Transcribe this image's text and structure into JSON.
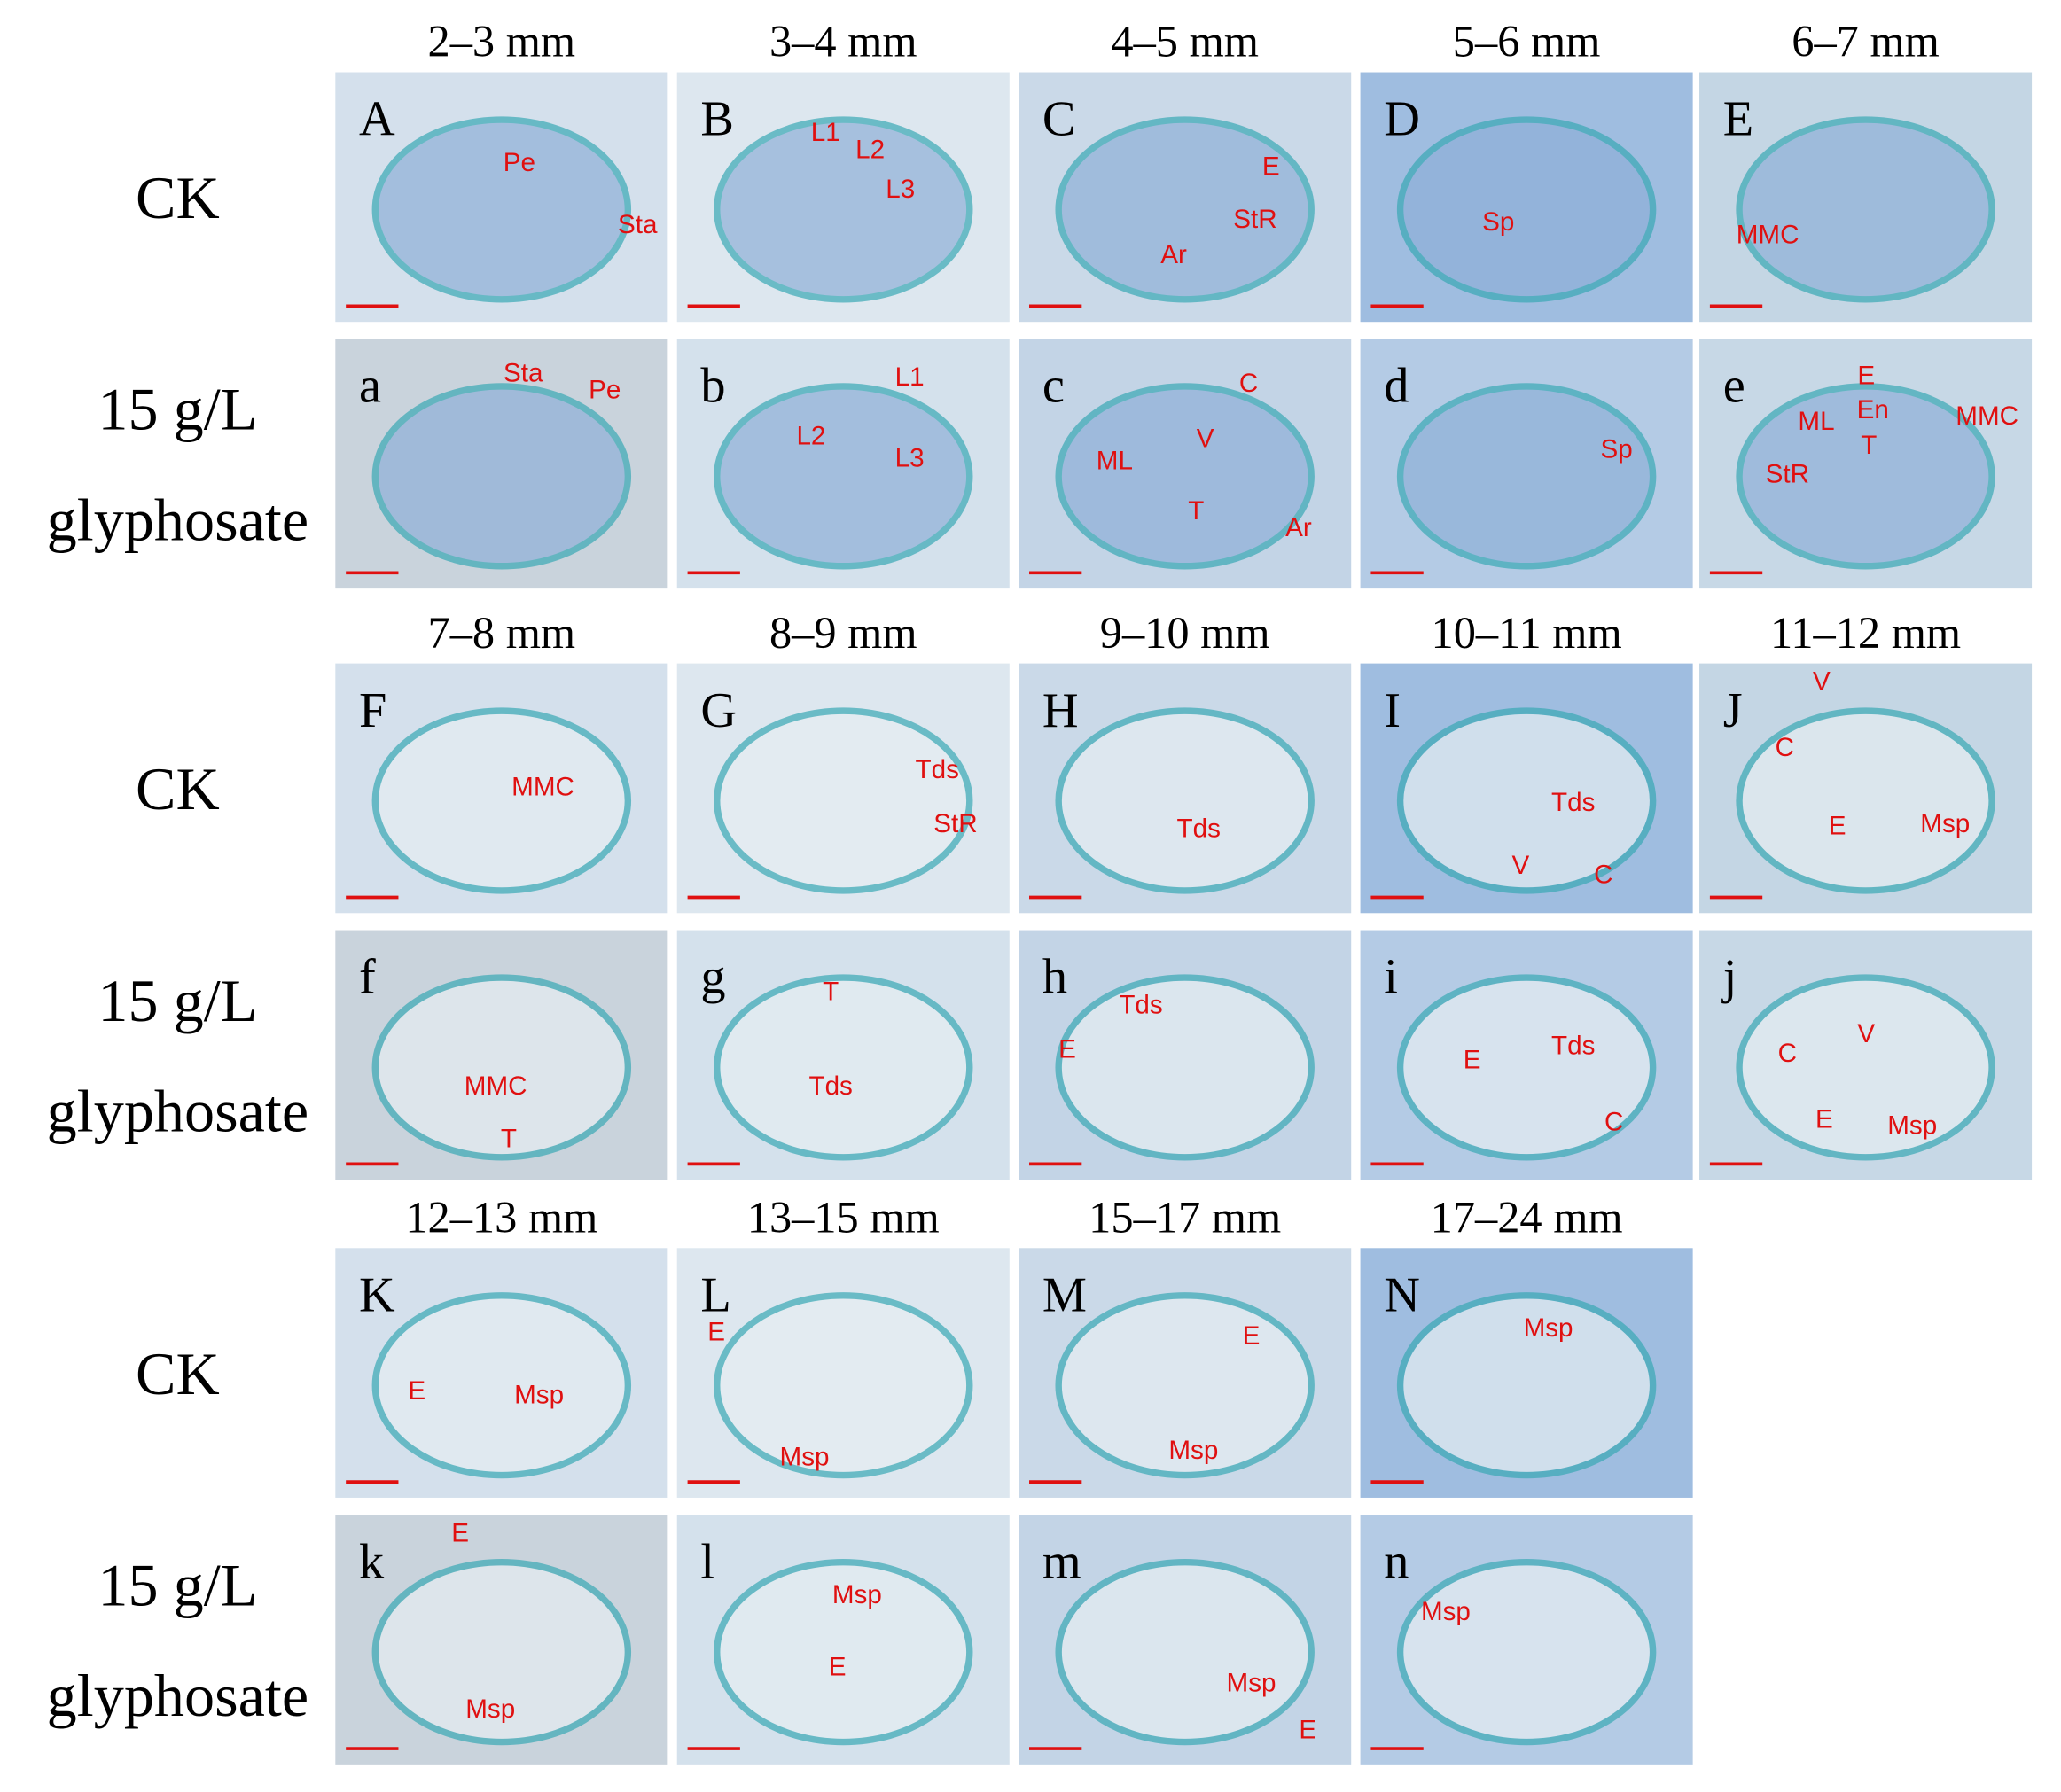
{
  "blocks": [
    {
      "headers": [
        "2–3 mm",
        "3–4 mm",
        "4–5 mm",
        "5–6 mm",
        "6–7 mm"
      ],
      "rows": [
        {
          "label": [
            "CK"
          ],
          "panels": [
            {
              "letter": "A",
              "annotations": [
                "Pe",
                "Sta"
              ]
            },
            {
              "letter": "B",
              "annotations": [
                "L1",
                "L2",
                "L3"
              ]
            },
            {
              "letter": "C",
              "annotations": [
                "E",
                "StR",
                "Ar"
              ]
            },
            {
              "letter": "D",
              "annotations": [
                "Sp"
              ]
            },
            {
              "letter": "E",
              "annotations": [
                "MMC"
              ]
            }
          ]
        },
        {
          "label": [
            "15 g/L",
            "glyphosate"
          ],
          "panels": [
            {
              "letter": "a",
              "annotations": [
                "Sta",
                "Pe"
              ]
            },
            {
              "letter": "b",
              "annotations": [
                "L1",
                "L2",
                "L3"
              ]
            },
            {
              "letter": "c",
              "annotations": [
                "C",
                "V",
                "ML",
                "T",
                "Ar"
              ]
            },
            {
              "letter": "d",
              "annotations": [
                "Sp"
              ]
            },
            {
              "letter": "e",
              "annotations": [
                "E",
                "En",
                "ML",
                "T",
                "MMC",
                "StR"
              ]
            }
          ]
        }
      ]
    },
    {
      "headers": [
        "7–8 mm",
        "8–9 mm",
        "9–10 mm",
        "10–11 mm",
        "11–12 mm"
      ],
      "rows": [
        {
          "label": [
            "CK"
          ],
          "panels": [
            {
              "letter": "F",
              "annotations": [
                "MMC"
              ]
            },
            {
              "letter": "G",
              "annotations": [
                "Tds",
                "StR"
              ]
            },
            {
              "letter": "H",
              "annotations": [
                "Tds"
              ]
            },
            {
              "letter": "I",
              "annotations": [
                "Tds",
                "V",
                "C"
              ]
            },
            {
              "letter": "J",
              "annotations": [
                "V",
                "C",
                "E",
                "Msp"
              ]
            }
          ]
        },
        {
          "label": [
            "15 g/L",
            "glyphosate"
          ],
          "panels": [
            {
              "letter": "f",
              "annotations": [
                "MMC",
                "T"
              ]
            },
            {
              "letter": "g",
              "annotations": [
                "T",
                "Tds"
              ]
            },
            {
              "letter": "h",
              "annotations": [
                "Tds",
                "E"
              ]
            },
            {
              "letter": "i",
              "annotations": [
                "Tds",
                "E",
                "C"
              ]
            },
            {
              "letter": "j",
              "annotations": [
                "V",
                "C",
                "E",
                "Msp"
              ]
            }
          ]
        }
      ]
    },
    {
      "headers": [
        "12–13 mm",
        "13–15 mm",
        "15–17 mm",
        "17–24 mm"
      ],
      "rows": [
        {
          "label": [
            "CK"
          ],
          "panels": [
            {
              "letter": "K",
              "annotations": [
                "E",
                "Msp"
              ]
            },
            {
              "letter": "L",
              "annotations": [
                "E",
                "Msp"
              ]
            },
            {
              "letter": "M",
              "annotations": [
                "E",
                "Msp"
              ]
            },
            {
              "letter": "N",
              "annotations": [
                "Msp"
              ]
            }
          ]
        },
        {
          "label": [
            "15 g/L",
            "glyphosate"
          ],
          "panels": [
            {
              "letter": "k",
              "annotations": [
                "E",
                "Msp"
              ]
            },
            {
              "letter": "l",
              "annotations": [
                "Msp",
                "E"
              ]
            },
            {
              "letter": "m",
              "annotations": [
                "Msp",
                "E"
              ]
            },
            {
              "letter": "n",
              "annotations": [
                "Msp"
              ]
            }
          ]
        }
      ]
    }
  ]
}
